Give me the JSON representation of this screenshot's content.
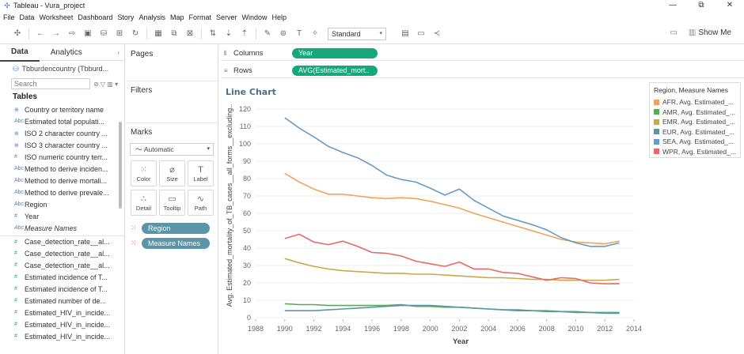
{
  "window": {
    "title": "Tableau - Vura_project",
    "controls": [
      "—",
      "⧉",
      "✕"
    ]
  },
  "menu": [
    "File",
    "Data",
    "Worksheet",
    "Dashboard",
    "Story",
    "Analysis",
    "Map",
    "Format",
    "Server",
    "Window",
    "Help"
  ],
  "toolbar": {
    "fit_select": "Standard",
    "show_me_label": "Show Me"
  },
  "data_pane": {
    "tabs": [
      "Data",
      "Analytics"
    ],
    "datasource": "Tbburdencountry (Tbburd...",
    "search_placeholder": "Search",
    "tables_header": "Tables",
    "fields": [
      {
        "icon": "⊕",
        "type": "dim",
        "label": "Country or territory name"
      },
      {
        "icon": "Abc",
        "type": "dim",
        "label": "Estimated total populati..."
      },
      {
        "icon": "⊕",
        "type": "dim",
        "label": "ISO 2 character country ..."
      },
      {
        "icon": "⊕",
        "type": "dim",
        "label": "ISO 3 character country ..."
      },
      {
        "icon": "#",
        "type": "dim",
        "label": "ISO numeric country terr..."
      },
      {
        "icon": "Abc",
        "type": "dim",
        "label": "Method to derive inciden..."
      },
      {
        "icon": "Abc",
        "type": "dim",
        "label": "Method to derive mortali..."
      },
      {
        "icon": "Abc",
        "type": "dim",
        "label": "Method to derive prevale..."
      },
      {
        "icon": "Abc",
        "type": "dim",
        "label": "Region"
      },
      {
        "icon": "#",
        "type": "dim",
        "label": "Year"
      },
      {
        "icon": "Abc",
        "type": "dim",
        "label": "Measure Names",
        "italic": true
      },
      {
        "icon": "#",
        "type": "meas",
        "label": "Case_detection_rate__al...",
        "gap": true
      },
      {
        "icon": "#",
        "type": "meas",
        "label": "Case_detection_rate__al..."
      },
      {
        "icon": "#",
        "type": "meas",
        "label": "Case_detection_rate__al..."
      },
      {
        "icon": "#",
        "type": "meas",
        "label": "Estimated incidence of T..."
      },
      {
        "icon": "#",
        "type": "meas",
        "label": "Estimated incidence of T..."
      },
      {
        "icon": "#",
        "type": "meas",
        "label": "Estimated number of de..."
      },
      {
        "icon": "#",
        "type": "meas",
        "label": "Estimated_HIV_in_incide..."
      },
      {
        "icon": "#",
        "type": "meas",
        "label": "Estimated_HIV_in_incide..."
      },
      {
        "icon": "#",
        "type": "meas",
        "label": "Estimated_HIV_in_incide..."
      }
    ]
  },
  "cards": {
    "pages": "Pages",
    "filters": "Filters",
    "marks": "Marks",
    "marks_type": "Automatic",
    "mark_buttons": [
      {
        "icon": "⁙",
        "label": "Color",
        "name": "color"
      },
      {
        "icon": "⌀",
        "label": "Size",
        "name": "size"
      },
      {
        "icon": "T",
        "label": "Label",
        "name": "label"
      },
      {
        "icon": "∴",
        "label": "Detail",
        "name": "detail"
      },
      {
        "icon": "▭",
        "label": "Tooltip",
        "name": "tooltip"
      },
      {
        "icon": "∿",
        "label": "Path",
        "name": "path"
      }
    ],
    "mark_pills": [
      "Region",
      "Measure Names"
    ]
  },
  "shelves": {
    "columns_label": "Columns",
    "columns_pill": "Year",
    "rows_label": "Rows",
    "rows_pill": "AVG(Estimated_mort.."
  },
  "chart_data": {
    "type": "line",
    "title": "Line Chart",
    "xlabel": "Year",
    "ylabel": "Avg. Estimated_mortality_of_TB_cases__all_forms__excluding..",
    "xlim": [
      1988,
      2014
    ],
    "ylim": [
      0,
      120
    ],
    "xticks": [
      1988,
      1990,
      1992,
      1994,
      1996,
      1998,
      2000,
      2002,
      2004,
      2006,
      2008,
      2010,
      2012,
      2014
    ],
    "yticks": [
      0,
      10,
      20,
      30,
      40,
      50,
      60,
      70,
      80,
      90,
      100,
      110,
      120
    ],
    "grid": "horizontal",
    "legend_title": "Region, Measure Names",
    "legend_position": "right",
    "x": [
      1990,
      1991,
      1992,
      1993,
      1994,
      1995,
      1996,
      1997,
      1998,
      1999,
      2000,
      2001,
      2002,
      2003,
      2004,
      2005,
      2006,
      2007,
      2008,
      2009,
      2010,
      2011,
      2012,
      2013
    ],
    "series": [
      {
        "name": "AFR, Avg. Estimated_...",
        "color": "#f0a35a",
        "values": [
          83,
          78,
          74,
          71,
          71,
          70,
          69,
          68.5,
          69,
          68.5,
          67,
          65,
          63,
          60,
          57.5,
          55,
          52.5,
          50,
          47.5,
          45,
          43.5,
          43,
          42.5,
          44
        ]
      },
      {
        "name": "AMR, Avg. Estimated_...",
        "color": "#5aa85a",
        "values": [
          8,
          7.5,
          7.5,
          7,
          7,
          7,
          7,
          7,
          7.5,
          6.5,
          6.5,
          6,
          6,
          5.5,
          5,
          4.5,
          4.5,
          4,
          4,
          3.5,
          3.5,
          3,
          3,
          3
        ]
      },
      {
        "name": "EMR, Avg. Estimated_...",
        "color": "#c9a94a",
        "values": [
          34,
          31.5,
          29.5,
          28,
          27,
          26.5,
          26,
          25.5,
          25.5,
          25,
          25,
          24.5,
          24,
          23.5,
          23,
          23,
          22.5,
          22,
          22,
          21.5,
          21.5,
          21.5,
          21.5,
          22
        ]
      },
      {
        "name": "EUR, Avg. Estimated_...",
        "color": "#5a96a8",
        "values": [
          4,
          4,
          4,
          4.5,
          5,
          5.5,
          6,
          6.5,
          7,
          7,
          7,
          6.5,
          6,
          5.5,
          5,
          4.5,
          4,
          4,
          3.5,
          3.5,
          3,
          3,
          2.5,
          2.5
        ]
      },
      {
        "name": "SEA, Avg. Estimated_...",
        "color": "#6a9ac6",
        "values": [
          115,
          109,
          104,
          98.5,
          95,
          92,
          87.5,
          82,
          79.5,
          78,
          74.5,
          70.5,
          74,
          67.5,
          63,
          58.5,
          56,
          53.5,
          50.5,
          46,
          43,
          41,
          41,
          43
        ]
      },
      {
        "name": "WPR, Avg. Estimated_...",
        "color": "#e56b6b",
        "values": [
          45.5,
          48,
          43.5,
          42,
          44,
          41,
          37.5,
          37,
          35.5,
          32.5,
          31,
          29.5,
          32,
          28,
          28,
          26,
          25.5,
          23.5,
          21.5,
          23,
          22.5,
          20,
          19.5,
          19.5
        ]
      }
    ]
  }
}
